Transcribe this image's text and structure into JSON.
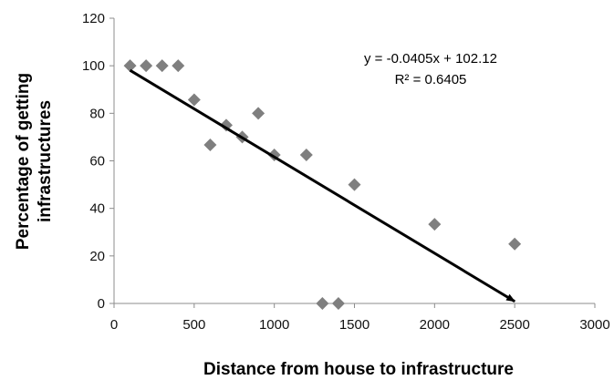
{
  "chart_data": {
    "type": "scatter",
    "title": "",
    "xlabel": "Distance from house to infrastructure",
    "ylabel_lines": [
      "Percentage of getting",
      "infrastructures"
    ],
    "xlim": [
      0,
      3000
    ],
    "ylim": [
      0,
      120
    ],
    "x_ticks": [
      0,
      500,
      1000,
      1500,
      2000,
      2500,
      3000
    ],
    "y_ticks": [
      0,
      20,
      40,
      60,
      80,
      100,
      120
    ],
    "grid": false,
    "legend": "none",
    "marker": "diamond",
    "marker_color": "#7f7f7f",
    "points": [
      {
        "x": 100,
        "y": 100
      },
      {
        "x": 200,
        "y": 100
      },
      {
        "x": 300,
        "y": 100
      },
      {
        "x": 400,
        "y": 100
      },
      {
        "x": 500,
        "y": 85.7
      },
      {
        "x": 600,
        "y": 66.7
      },
      {
        "x": 700,
        "y": 75
      },
      {
        "x": 800,
        "y": 70
      },
      {
        "x": 900,
        "y": 80
      },
      {
        "x": 1000,
        "y": 62.5
      },
      {
        "x": 1200,
        "y": 62.5
      },
      {
        "x": 1300,
        "y": 0
      },
      {
        "x": 1400,
        "y": 0
      },
      {
        "x": 1500,
        "y": 50
      },
      {
        "x": 2000,
        "y": 33.3
      },
      {
        "x": 2500,
        "y": 25
      }
    ],
    "trendline": {
      "type": "linear",
      "slope": -0.0405,
      "intercept": 102.12,
      "x_start": 100,
      "x_end": 2500,
      "arrow": true,
      "color": "#000000"
    },
    "annotations": {
      "equation": "y = -0.0405x + 102.12",
      "r_squared": "R² = 0.6405"
    }
  }
}
